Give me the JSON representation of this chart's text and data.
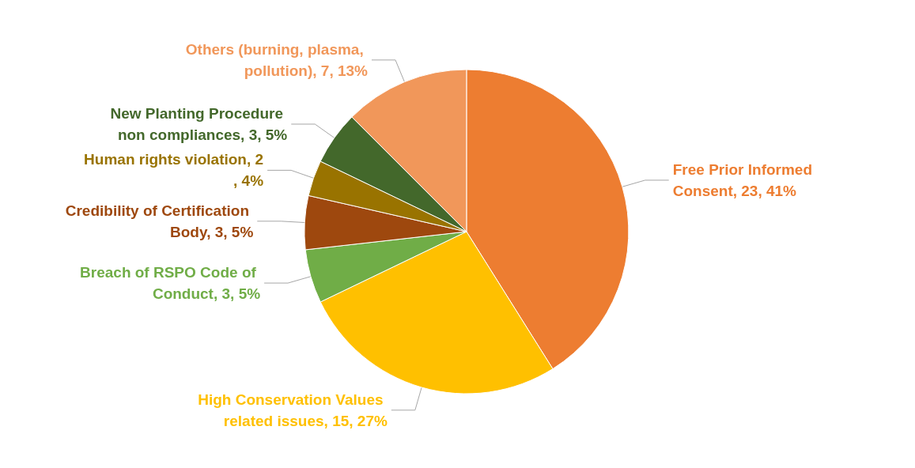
{
  "chart_data": {
    "type": "pie",
    "categories": [
      "Free Prior Informed Consent",
      "High Conservation Values related issues",
      "Breach of RSPO Code of Conduct",
      "Credibility of Certification Body",
      "Human rights violation",
      "New Planting Procedure non compliances",
      "Others (burning, plasma, pollution)"
    ],
    "values": [
      23,
      15,
      3,
      3,
      2,
      3,
      7
    ],
    "value_labels": [
      "23, 41%",
      "15, 27%",
      "3, 5%",
      "3, 5%",
      "2, 4%",
      "3, 5%",
      "7, 13%"
    ],
    "colors": [
      "#ed7d31",
      "#ffc000",
      "#70ad47",
      "#9e480e",
      "#997300",
      "#43682b",
      "#f1975a"
    ]
  }
}
